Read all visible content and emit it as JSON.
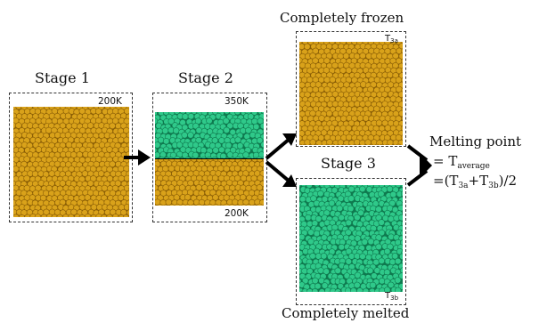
{
  "stage1": {
    "title": "Stage 1",
    "temp": "200K"
  },
  "stage2": {
    "title": "Stage 2",
    "temp_top": "350K",
    "temp_bottom": "200K"
  },
  "stage3": {
    "title": "Stage 3",
    "frozen_caption": "Completely frozen",
    "melted_caption": "Completely melted",
    "frozen_label": {
      "main": "T",
      "sub": "3a"
    },
    "melted_label": {
      "main": "T",
      "sub": "3b"
    }
  },
  "result": {
    "line1": "Melting point",
    "line2_prefix": "= T",
    "line2_sub": "average",
    "line3_a": "=(T",
    "line3_sub_a": "3a",
    "line3_plus": "+T",
    "line3_sub_b": "3b",
    "line3_end": ")/2"
  },
  "colors": {
    "solid": "#d9a21a",
    "solid_dark": "#8a5e06",
    "liquid": "#2fc98a",
    "liquid_dark": "#0f7a4f",
    "frame": "#333333"
  }
}
